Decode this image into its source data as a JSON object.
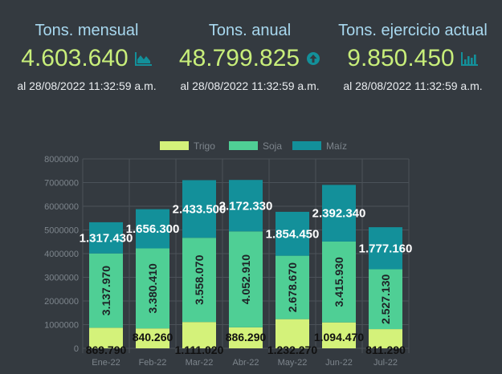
{
  "kpis": [
    {
      "title": "Tons. mensual",
      "value": "4.603.640",
      "icon": "area-chart-icon",
      "date": "al 28/08/2022 11:32:59 a.m."
    },
    {
      "title": "Tons. anual",
      "value": "48.799.825",
      "icon": "arrow-circle-up-icon",
      "date": "al 28/08/2022 11:32:59 a.m."
    },
    {
      "title": "Tons. ejercicio actual",
      "value": "9.850.450",
      "icon": "bar-chart-icon",
      "date": "al 28/08/2022 11:32:59 a.m."
    }
  ],
  "colors": {
    "trigo": "#d4f27a",
    "soja": "#4fcf95",
    "maiz": "#13909a",
    "accent": "#c8ee7a",
    "title": "#a8d8ef"
  },
  "chart_data": {
    "type": "bar",
    "stacked": true,
    "categories": [
      "Ene-22",
      "Feb-22",
      "Mar-22",
      "Abr-22",
      "May-22",
      "Jun-22",
      "Jul-22"
    ],
    "series": [
      {
        "name": "Trigo",
        "color": "#d4f27a",
        "values": [
          869790,
          840260,
          1111020,
          886290,
          1232270,
          1094470,
          811290
        ],
        "labels": [
          "869.790",
          "840.260",
          "1.111.020",
          "886.290",
          "1.232.270",
          "1.094.470",
          "811.290"
        ]
      },
      {
        "name": "Soja",
        "color": "#4fcf95",
        "values": [
          3137970,
          3380410,
          3558070,
          4052910,
          2678670,
          3415930,
          2527130
        ],
        "labels": [
          "3.137.970",
          "3.380.410",
          "3.558.070",
          "4.052.910",
          "2.678.670",
          "3.415.930",
          "2.527.130"
        ]
      },
      {
        "name": "Maíz",
        "color": "#13909a",
        "values": [
          1317430,
          1656300,
          2433500,
          2172330,
          1854450,
          2392340,
          1777160
        ],
        "labels": [
          "1.317.430",
          "1.656.300",
          "2.433.500",
          "2.172.330",
          "1.854.450",
          "2.392.340",
          "1.777.160"
        ]
      }
    ],
    "ylim": [
      0,
      8000000
    ],
    "yticks": [
      "0",
      "1000000",
      "2000000",
      "3000000",
      "4000000",
      "5000000",
      "6000000",
      "7000000",
      "8000000"
    ],
    "grid": true,
    "legend": "top"
  }
}
